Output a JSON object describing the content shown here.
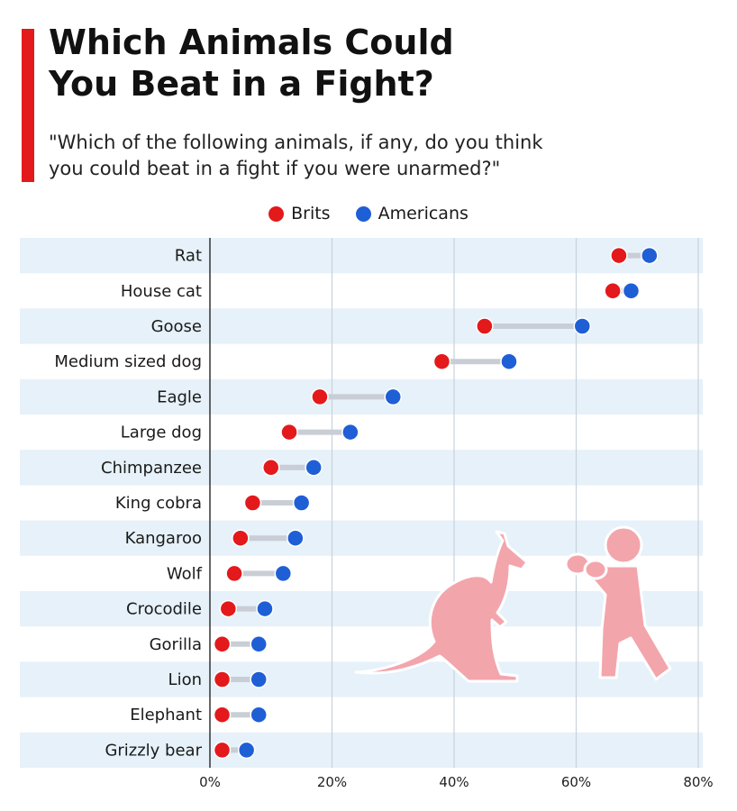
{
  "title_line1": "Which Animals Could",
  "title_line2": "You Beat in a Fight?",
  "subtitle_line1": "\"Which of the following animals, if any, do you think",
  "subtitle_line2": "you could beat in a fight if you were unarmed?\"",
  "colors": {
    "accent": "#e3191b",
    "brits": "#e3191b",
    "americans": "#1f5fd6",
    "connector": "#c9ced6",
    "row_band": "#e6f1f9",
    "gridline": "#c8d2dc",
    "illustration": "#f3a5ac"
  },
  "icons": [
    "kangaroo-icon",
    "boxer-icon"
  ],
  "chart_data": {
    "type": "dumbbell",
    "categories": [
      "Rat",
      "House cat",
      "Goose",
      "Medium sized dog",
      "Eagle",
      "Large dog",
      "Chimpanzee",
      "King cobra",
      "Kangaroo",
      "Wolf",
      "Crocodile",
      "Gorilla",
      "Lion",
      "Elephant",
      "Grizzly bear"
    ],
    "series": [
      {
        "name": "Brits",
        "values": [
          67,
          66,
          45,
          38,
          18,
          13,
          10,
          7,
          5,
          4,
          3,
          2,
          2,
          2,
          2
        ]
      },
      {
        "name": "Americans",
        "values": [
          72,
          69,
          61,
          49,
          30,
          23,
          17,
          15,
          14,
          12,
          9,
          8,
          8,
          8,
          6
        ]
      }
    ],
    "x_ticks": [
      "0%",
      "20%",
      "40%",
      "60%",
      "80%"
    ],
    "xlim": [
      0,
      80
    ],
    "unit": "%",
    "grid": true,
    "legend_position": "top-center"
  }
}
